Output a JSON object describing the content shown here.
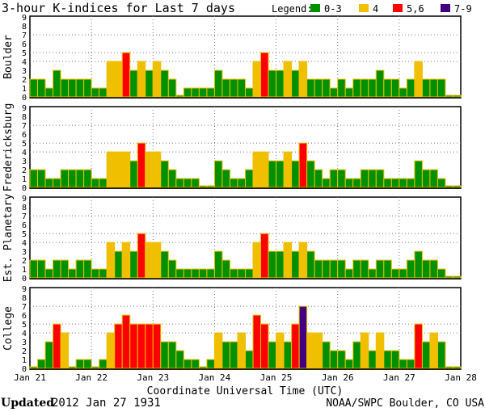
{
  "chart_data": {
    "type": "bar",
    "title": "3-hour K-indices for Last 7 days",
    "xlabel": "Coordinate Universal Time (UTC)",
    "x_ticks": [
      "Jan 21",
      "Jan 22",
      "Jan 23",
      "Jan 24",
      "Jan 25",
      "Jan 26",
      "Jan 27",
      "Jan 28"
    ],
    "y_ticks": [
      "0",
      "1",
      "2",
      "3",
      "4",
      "5",
      "6",
      "7",
      "8",
      "9"
    ],
    "ylim": [
      0,
      9
    ],
    "grid": {
      "horizontal": [
        4,
        5,
        7
      ],
      "vertical": "daily"
    },
    "legend": {
      "label": "Legend:",
      "placement": "top-right",
      "entries": [
        {
          "label": "0-3",
          "color": "#009000"
        },
        {
          "label": "4",
          "color": "#f0c000"
        },
        {
          "label": "5,6",
          "color": "#ff0000"
        },
        {
          "label": "7-9",
          "color": "#400080"
        }
      ]
    },
    "bar_outline_color": "#f0c000",
    "series": [
      {
        "name": "Boulder",
        "values": [
          2,
          2,
          1,
          3,
          2,
          2,
          2,
          2,
          1,
          1,
          4,
          4,
          5,
          3,
          4,
          3,
          4,
          3,
          2,
          0,
          1,
          1,
          1,
          1,
          3,
          2,
          2,
          2,
          1,
          4,
          5,
          3,
          3,
          4,
          3,
          4,
          2,
          2,
          2,
          1,
          2,
          1,
          2,
          2,
          2,
          3,
          2,
          2,
          1,
          2,
          4,
          2,
          2,
          2,
          0,
          0
        ]
      },
      {
        "name": "Fredericksburg",
        "values": [
          2,
          2,
          1,
          1,
          2,
          2,
          2,
          2,
          1,
          1,
          4,
          4,
          4,
          3,
          5,
          4,
          4,
          3,
          2,
          1,
          1,
          1,
          0,
          0,
          3,
          2,
          1,
          1,
          2,
          4,
          4,
          3,
          3,
          4,
          3,
          5,
          3,
          2,
          1,
          2,
          2,
          1,
          1,
          2,
          2,
          2,
          1,
          1,
          1,
          1,
          3,
          2,
          2,
          1,
          0,
          0
        ]
      },
      {
        "name": "Est. Planetary",
        "values": [
          2,
          2,
          1,
          2,
          2,
          1,
          2,
          2,
          1,
          1,
          4,
          3,
          4,
          3,
          5,
          4,
          4,
          3,
          2,
          1,
          1,
          1,
          1,
          1,
          3,
          2,
          1,
          1,
          1,
          4,
          5,
          3,
          3,
          4,
          3,
          4,
          3,
          2,
          2,
          2,
          2,
          1,
          2,
          2,
          1,
          2,
          2,
          1,
          1,
          2,
          3,
          2,
          2,
          1,
          0,
          0
        ]
      },
      {
        "name": "College",
        "values": [
          0,
          1,
          3,
          5,
          4,
          0,
          1,
          1,
          0,
          1,
          4,
          5,
          6,
          5,
          5,
          5,
          5,
          3,
          3,
          2,
          1,
          1,
          0,
          1,
          4,
          3,
          3,
          4,
          2,
          6,
          5,
          3,
          4,
          3,
          5,
          7,
          4,
          4,
          3,
          2,
          2,
          1,
          3,
          4,
          2,
          4,
          2,
          2,
          1,
          1,
          5,
          3,
          4,
          3,
          0,
          0
        ]
      }
    ]
  },
  "footer": {
    "updated_label": "Updated",
    "updated_value": "2012 Jan 27 1931",
    "source": "NOAA/SWPC Boulder, CO USA"
  }
}
